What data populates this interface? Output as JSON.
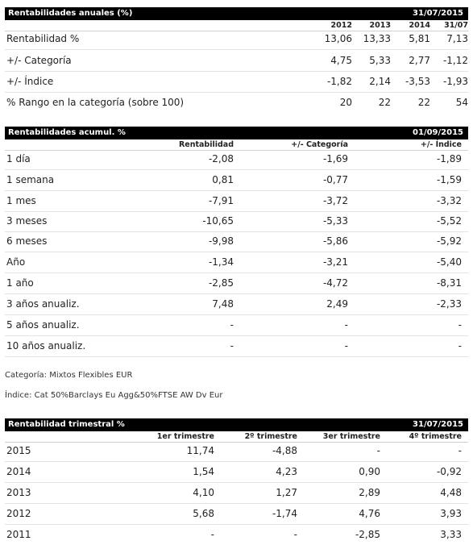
{
  "anuales": {
    "title": "Rentabilidades anuales (%)",
    "date": "31/07/2015",
    "columns": [
      "2012",
      "2013",
      "2014",
      "31/07"
    ],
    "rows": [
      {
        "label": "Rentabilidad %",
        "values": [
          "13,06",
          "13,33",
          "5,81",
          "7,13"
        ]
      },
      {
        "label": "+/- Categoría",
        "values": [
          "4,75",
          "5,33",
          "2,77",
          "-1,12"
        ]
      },
      {
        "label": "+/- Índice",
        "values": [
          "-1,82",
          "2,14",
          "-3,53",
          "-1,93"
        ]
      },
      {
        "label": "% Rango en la categoría (sobre 100)",
        "values": [
          "20",
          "22",
          "22",
          "54"
        ]
      }
    ]
  },
  "acumul": {
    "title": "Rentabilidades acumul. %",
    "date": "01/09/2015",
    "columns": [
      "Rentabilidad",
      "+/- Categoría",
      "+/- Índice"
    ],
    "rows": [
      {
        "label": "1 día",
        "values": [
          "-2,08",
          "-1,69",
          "-1,89"
        ]
      },
      {
        "label": "1 semana",
        "values": [
          "0,81",
          "-0,77",
          "-1,59"
        ]
      },
      {
        "label": "1 mes",
        "values": [
          "-7,91",
          "-3,72",
          "-3,32"
        ]
      },
      {
        "label": "3 meses",
        "values": [
          "-10,65",
          "-5,33",
          "-5,52"
        ]
      },
      {
        "label": "6 meses",
        "values": [
          "-9,98",
          "-5,86",
          "-5,92"
        ]
      },
      {
        "label": "Año",
        "values": [
          "-1,34",
          "-3,21",
          "-5,40"
        ]
      },
      {
        "label": "1 año",
        "values": [
          "-2,85",
          "-4,72",
          "-8,31"
        ]
      },
      {
        "label": "3 años anualiz.",
        "values": [
          "7,48",
          "2,49",
          "-2,33"
        ]
      },
      {
        "label": "5 años anualiz.",
        "values": [
          "-",
          "-",
          "-"
        ]
      },
      {
        "label": "10 años anualiz.",
        "values": [
          "-",
          "-",
          "-"
        ]
      }
    ]
  },
  "notes": {
    "categoria": "Categoría: Mixtos Flexibles EUR",
    "indice": "Índice: Cat 50%Barclays Eu Agg&50%FTSE AW Dv Eur"
  },
  "trimestral": {
    "title": "Rentabilidad trimestral %",
    "date": "31/07/2015",
    "columns": [
      "1er trimestre",
      "2º trimestre",
      "3er trimestre",
      "4º trimestre"
    ],
    "rows": [
      {
        "label": "2015",
        "values": [
          "11,74",
          "-4,88",
          "-",
          "-"
        ]
      },
      {
        "label": "2014",
        "values": [
          "1,54",
          "4,23",
          "0,90",
          "-0,92"
        ]
      },
      {
        "label": "2013",
        "values": [
          "4,10",
          "1,27",
          "2,89",
          "4,48"
        ]
      },
      {
        "label": "2012",
        "values": [
          "5,68",
          "-1,74",
          "4,76",
          "3,93"
        ]
      },
      {
        "label": "2011",
        "values": [
          "-",
          "-",
          "-2,85",
          "3,33"
        ]
      }
    ]
  }
}
